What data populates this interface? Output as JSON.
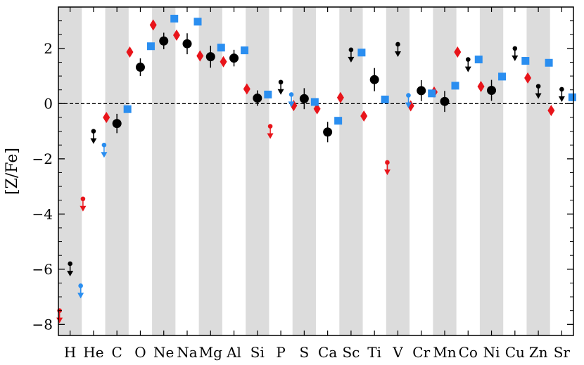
{
  "chart_data": {
    "type": "scatter",
    "title": "",
    "xlabel": "",
    "ylabel": "[Z/Fe]",
    "ylim": [
      -8.4,
      3.5
    ],
    "yticks": [
      -8,
      -6,
      -4,
      -2,
      0,
      2
    ],
    "ytick_labels": [
      "−8",
      "−6",
      "−4",
      "−2",
      "0",
      "2"
    ],
    "categories": [
      "H",
      "He",
      "C",
      "O",
      "Ne",
      "Na",
      "Mg",
      "Al",
      "Si",
      "P",
      "S",
      "Ca",
      "Sc",
      "Ti",
      "V",
      "Cr",
      "Mn",
      "Co",
      "Ni",
      "Cu",
      "Zn",
      "Sr"
    ],
    "reference_line": 0,
    "alternating_band_color": "#dcdcdc",
    "series": [
      {
        "color": "#e8141a",
        "marker": "diamond",
        "points": [
          {
            "x": "H",
            "y": -7.5,
            "upper_limit": true
          },
          {
            "x": "He",
            "y": -3.45,
            "upper_limit": true
          },
          {
            "x": "C",
            "y": -0.5
          },
          {
            "x": "O",
            "y": 1.87
          },
          {
            "x": "Ne",
            "y": 2.85
          },
          {
            "x": "Na",
            "y": 2.48
          },
          {
            "x": "Mg",
            "y": 1.73
          },
          {
            "x": "Al",
            "y": 1.52
          },
          {
            "x": "Si",
            "y": 0.53
          },
          {
            "x": "P",
            "y": -0.82,
            "upper_limit": true
          },
          {
            "x": "S",
            "y": -0.07
          },
          {
            "x": "Ca",
            "y": -0.19
          },
          {
            "x": "Sc",
            "y": 0.22
          },
          {
            "x": "Ti",
            "y": -0.45
          },
          {
            "x": "V",
            "y": -2.13,
            "upper_limit": true
          },
          {
            "x": "Cr",
            "y": -0.08
          },
          {
            "x": "Mn",
            "y": 0.42
          },
          {
            "x": "Co",
            "y": 1.87
          },
          {
            "x": "Ni",
            "y": 0.62
          },
          {
            "x": "Zn",
            "y": 0.93
          },
          {
            "x": "Sr",
            "y": -0.25
          }
        ]
      },
      {
        "color": "#000000",
        "marker": "circle",
        "points": [
          {
            "x": "H",
            "y": -5.8,
            "upper_limit": true
          },
          {
            "x": "He",
            "y": -1.0,
            "upper_limit": true
          },
          {
            "x": "C",
            "y": -0.72,
            "err": 0.35
          },
          {
            "x": "O",
            "y": 1.32,
            "err": 0.32
          },
          {
            "x": "Ne",
            "y": 2.27,
            "err": 0.3
          },
          {
            "x": "Na",
            "y": 2.17,
            "err": 0.38
          },
          {
            "x": "Mg",
            "y": 1.7,
            "err": 0.4
          },
          {
            "x": "Al",
            "y": 1.65,
            "err": 0.3
          },
          {
            "x": "Si",
            "y": 0.2,
            "err": 0.28
          },
          {
            "x": "P",
            "y": 0.78,
            "upper_limit": true
          },
          {
            "x": "S",
            "y": 0.18,
            "err": 0.38
          },
          {
            "x": "Ca",
            "y": -1.03,
            "err": 0.37
          },
          {
            "x": "Sc",
            "y": 1.95,
            "upper_limit": true
          },
          {
            "x": "Ti",
            "y": 0.87,
            "err": 0.42
          },
          {
            "x": "V",
            "y": 2.15,
            "upper_limit": true
          },
          {
            "x": "Cr",
            "y": 0.47,
            "err": 0.38
          },
          {
            "x": "Mn",
            "y": 0.08,
            "err": 0.38
          },
          {
            "x": "Co",
            "y": 1.6,
            "upper_limit": true
          },
          {
            "x": "Ni",
            "y": 0.48,
            "err": 0.38
          },
          {
            "x": "Cu",
            "y": 2.0,
            "upper_limit": true
          },
          {
            "x": "Zn",
            "y": 0.63,
            "upper_limit": true
          },
          {
            "x": "Sr",
            "y": 0.52,
            "upper_limit": true
          }
        ]
      },
      {
        "color": "#2a8ef0",
        "marker": "square",
        "points": [
          {
            "x": "H",
            "y": -6.6,
            "upper_limit": true
          },
          {
            "x": "He",
            "y": -1.5,
            "upper_limit": true
          },
          {
            "x": "C",
            "y": -0.2
          },
          {
            "x": "O",
            "y": 2.08
          },
          {
            "x": "Ne",
            "y": 3.08
          },
          {
            "x": "Na",
            "y": 2.97
          },
          {
            "x": "Mg",
            "y": 2.03
          },
          {
            "x": "Al",
            "y": 1.93
          },
          {
            "x": "Si",
            "y": 0.33
          },
          {
            "x": "P",
            "y": 0.33,
            "upper_limit": true
          },
          {
            "x": "S",
            "y": 0.06
          },
          {
            "x": "Ca",
            "y": -0.62
          },
          {
            "x": "Sc",
            "y": 1.85
          },
          {
            "x": "Ti",
            "y": 0.15
          },
          {
            "x": "V",
            "y": 0.3,
            "upper_limit": true
          },
          {
            "x": "Cr",
            "y": 0.37
          },
          {
            "x": "Mn",
            "y": 0.65
          },
          {
            "x": "Co",
            "y": 1.6
          },
          {
            "x": "Ni",
            "y": 0.98
          },
          {
            "x": "Cu",
            "y": 1.55
          },
          {
            "x": "Zn",
            "y": 1.48
          },
          {
            "x": "Sr",
            "y": 0.23
          }
        ]
      }
    ]
  }
}
